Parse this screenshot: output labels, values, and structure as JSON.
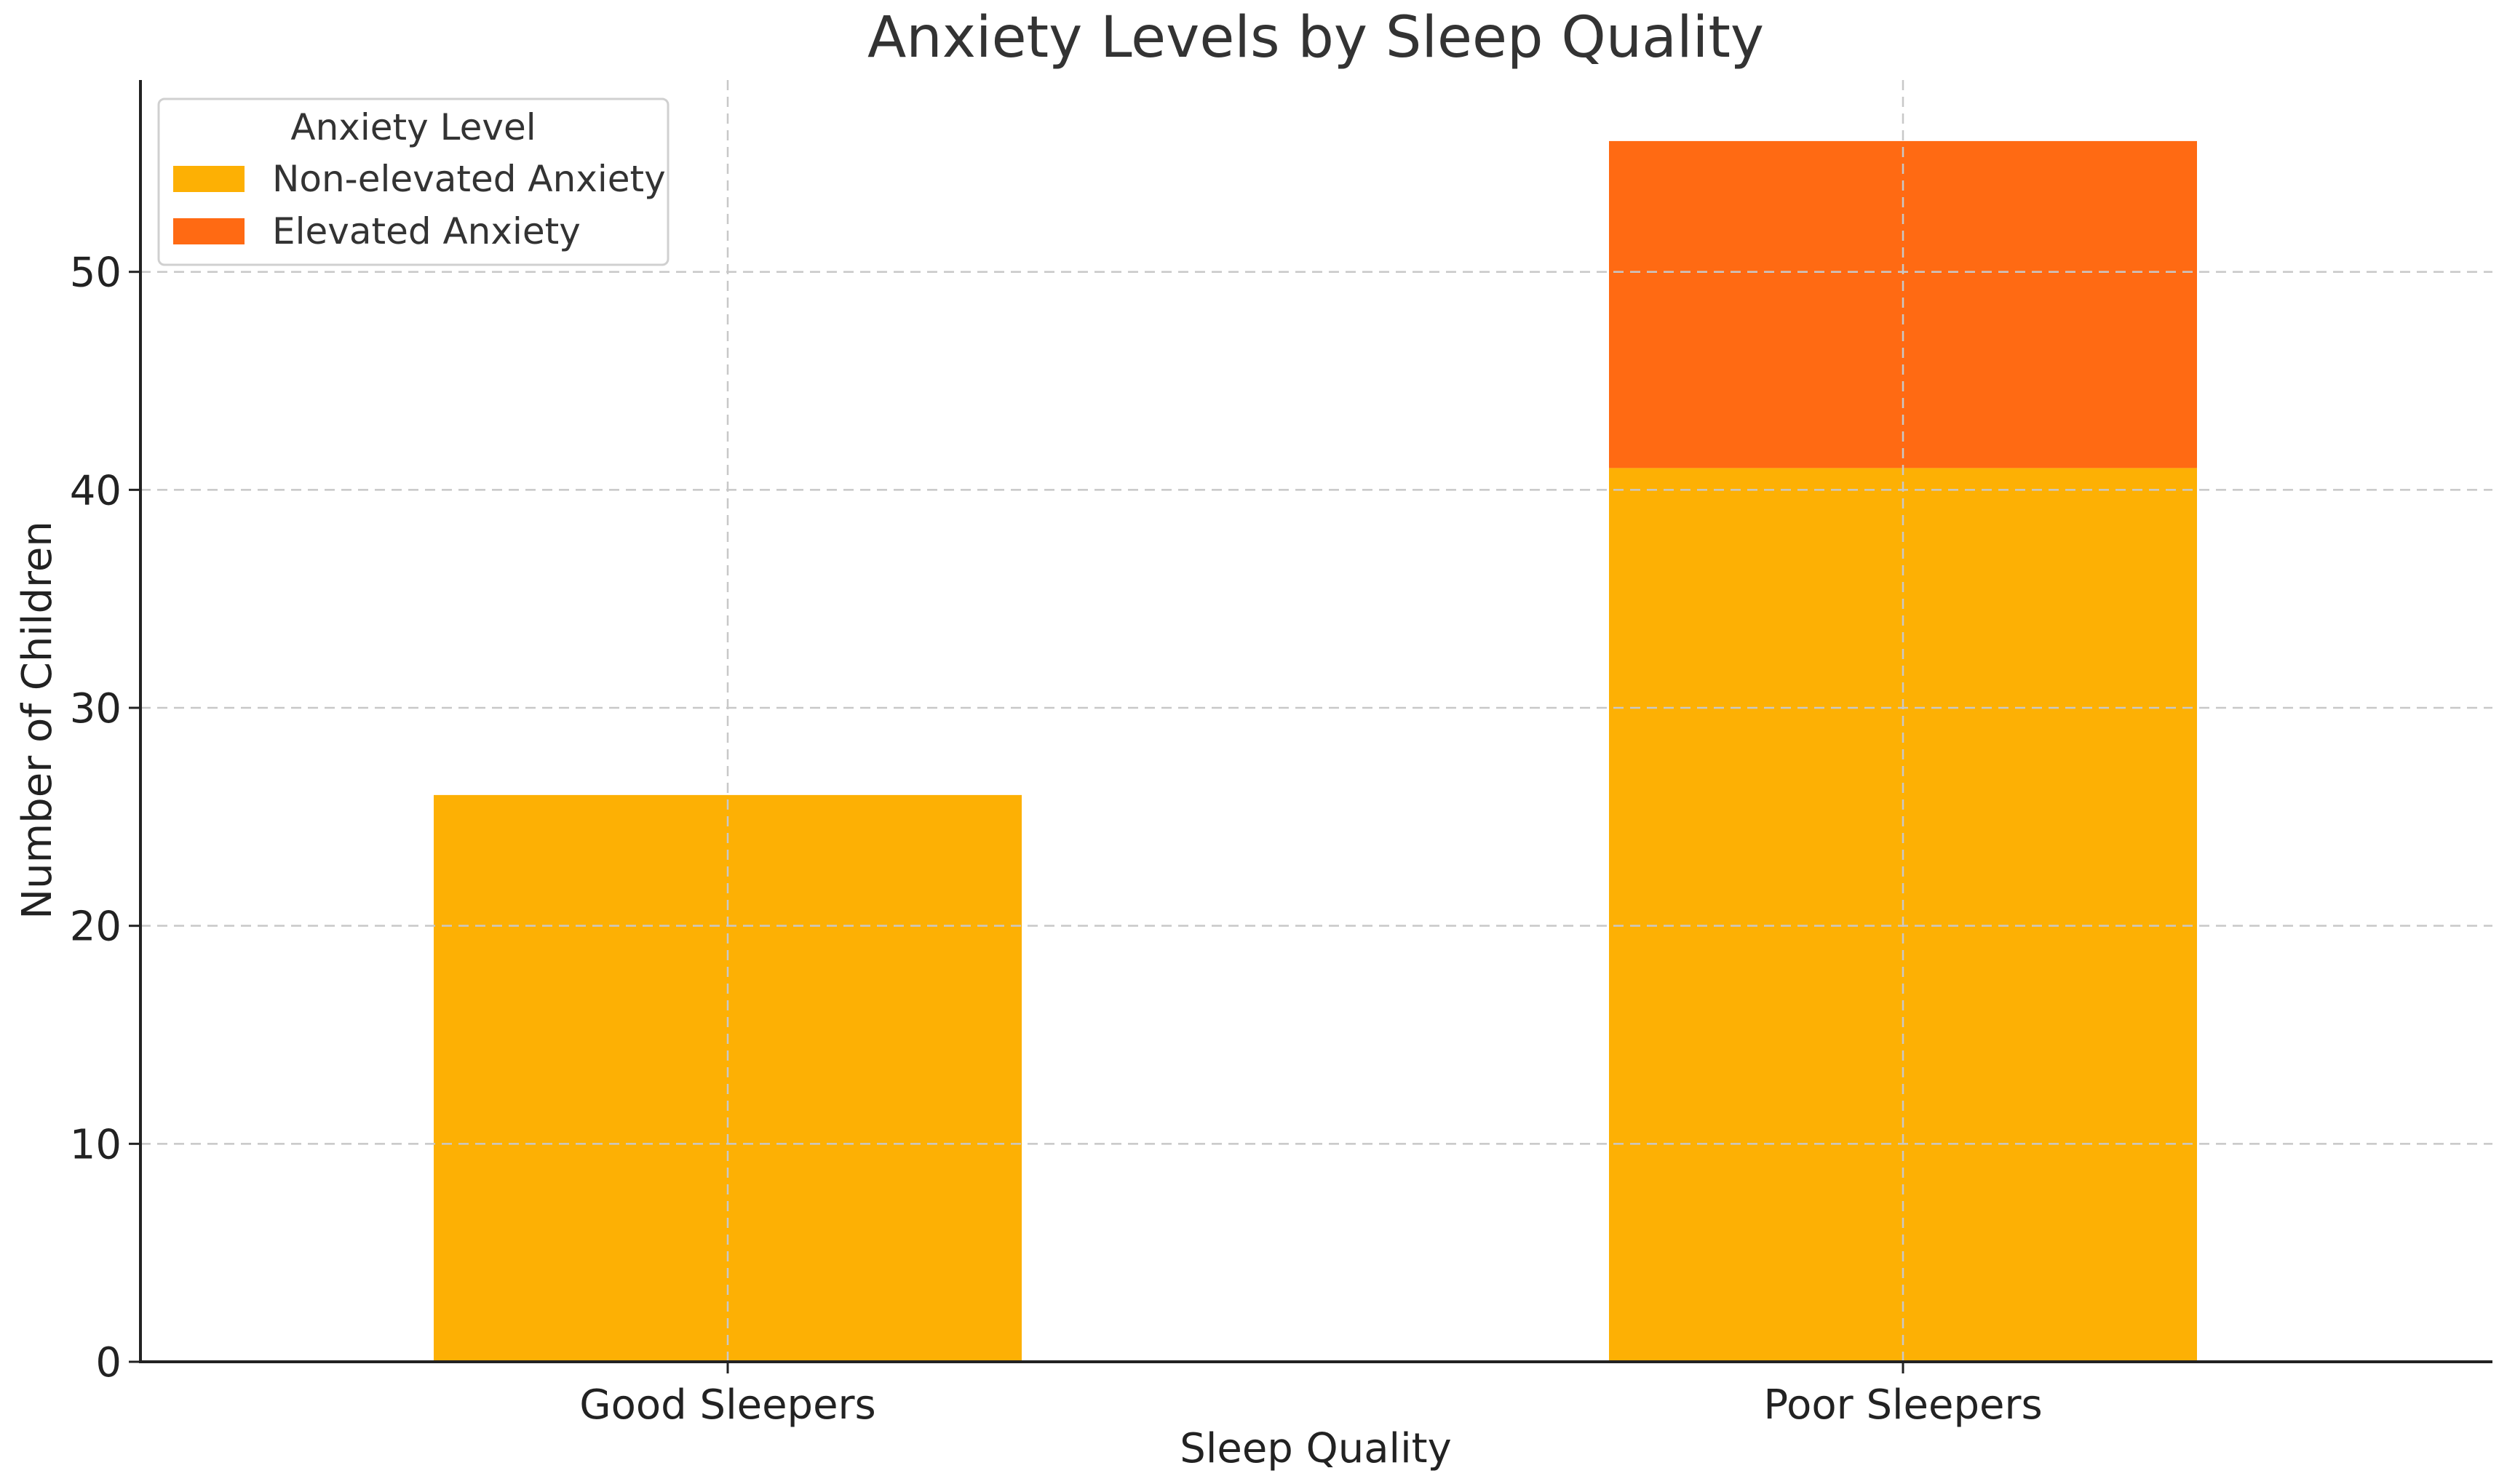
{
  "chart_data": {
    "type": "bar",
    "stacked": true,
    "title": "Anxiety Levels by Sleep Quality",
    "xlabel": "Sleep Quality",
    "ylabel": "Number of Children",
    "categories": [
      "Good Sleepers",
      "Poor Sleepers"
    ],
    "series": [
      {
        "name": "Non-elevated Anxiety",
        "values": [
          26,
          41
        ],
        "color": "#FDB004"
      },
      {
        "name": "Elevated Anxiety",
        "values": [
          0,
          15
        ],
        "color": "#FF6A13"
      }
    ],
    "ylim": [
      0,
      58.8
    ],
    "yticks": [
      0,
      10,
      20,
      30,
      40,
      50
    ],
    "grid": true,
    "legend": {
      "title": "Anxiety Level",
      "placement": "top-left"
    }
  }
}
